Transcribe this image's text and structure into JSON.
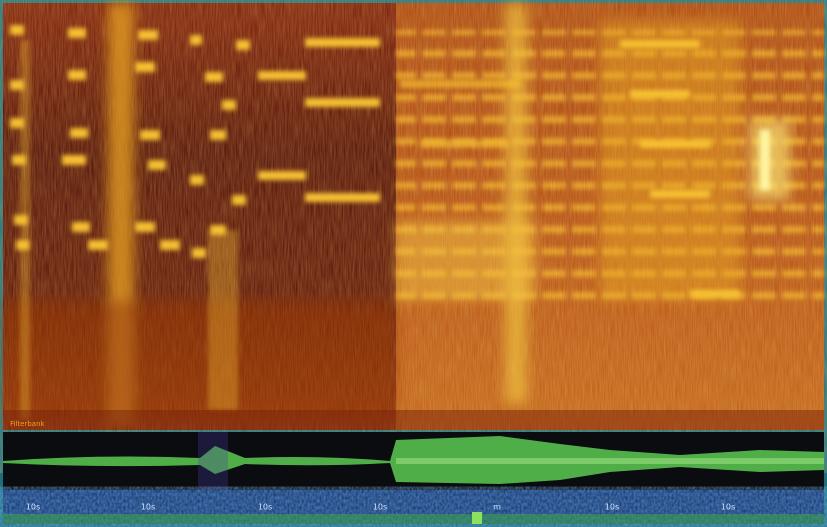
{
  "panel": {
    "label": "Filterbank"
  },
  "timeline": {
    "labels": [
      "10s",
      "10s",
      "10s",
      "10s",
      "m",
      "10s",
      "10s"
    ]
  }
}
